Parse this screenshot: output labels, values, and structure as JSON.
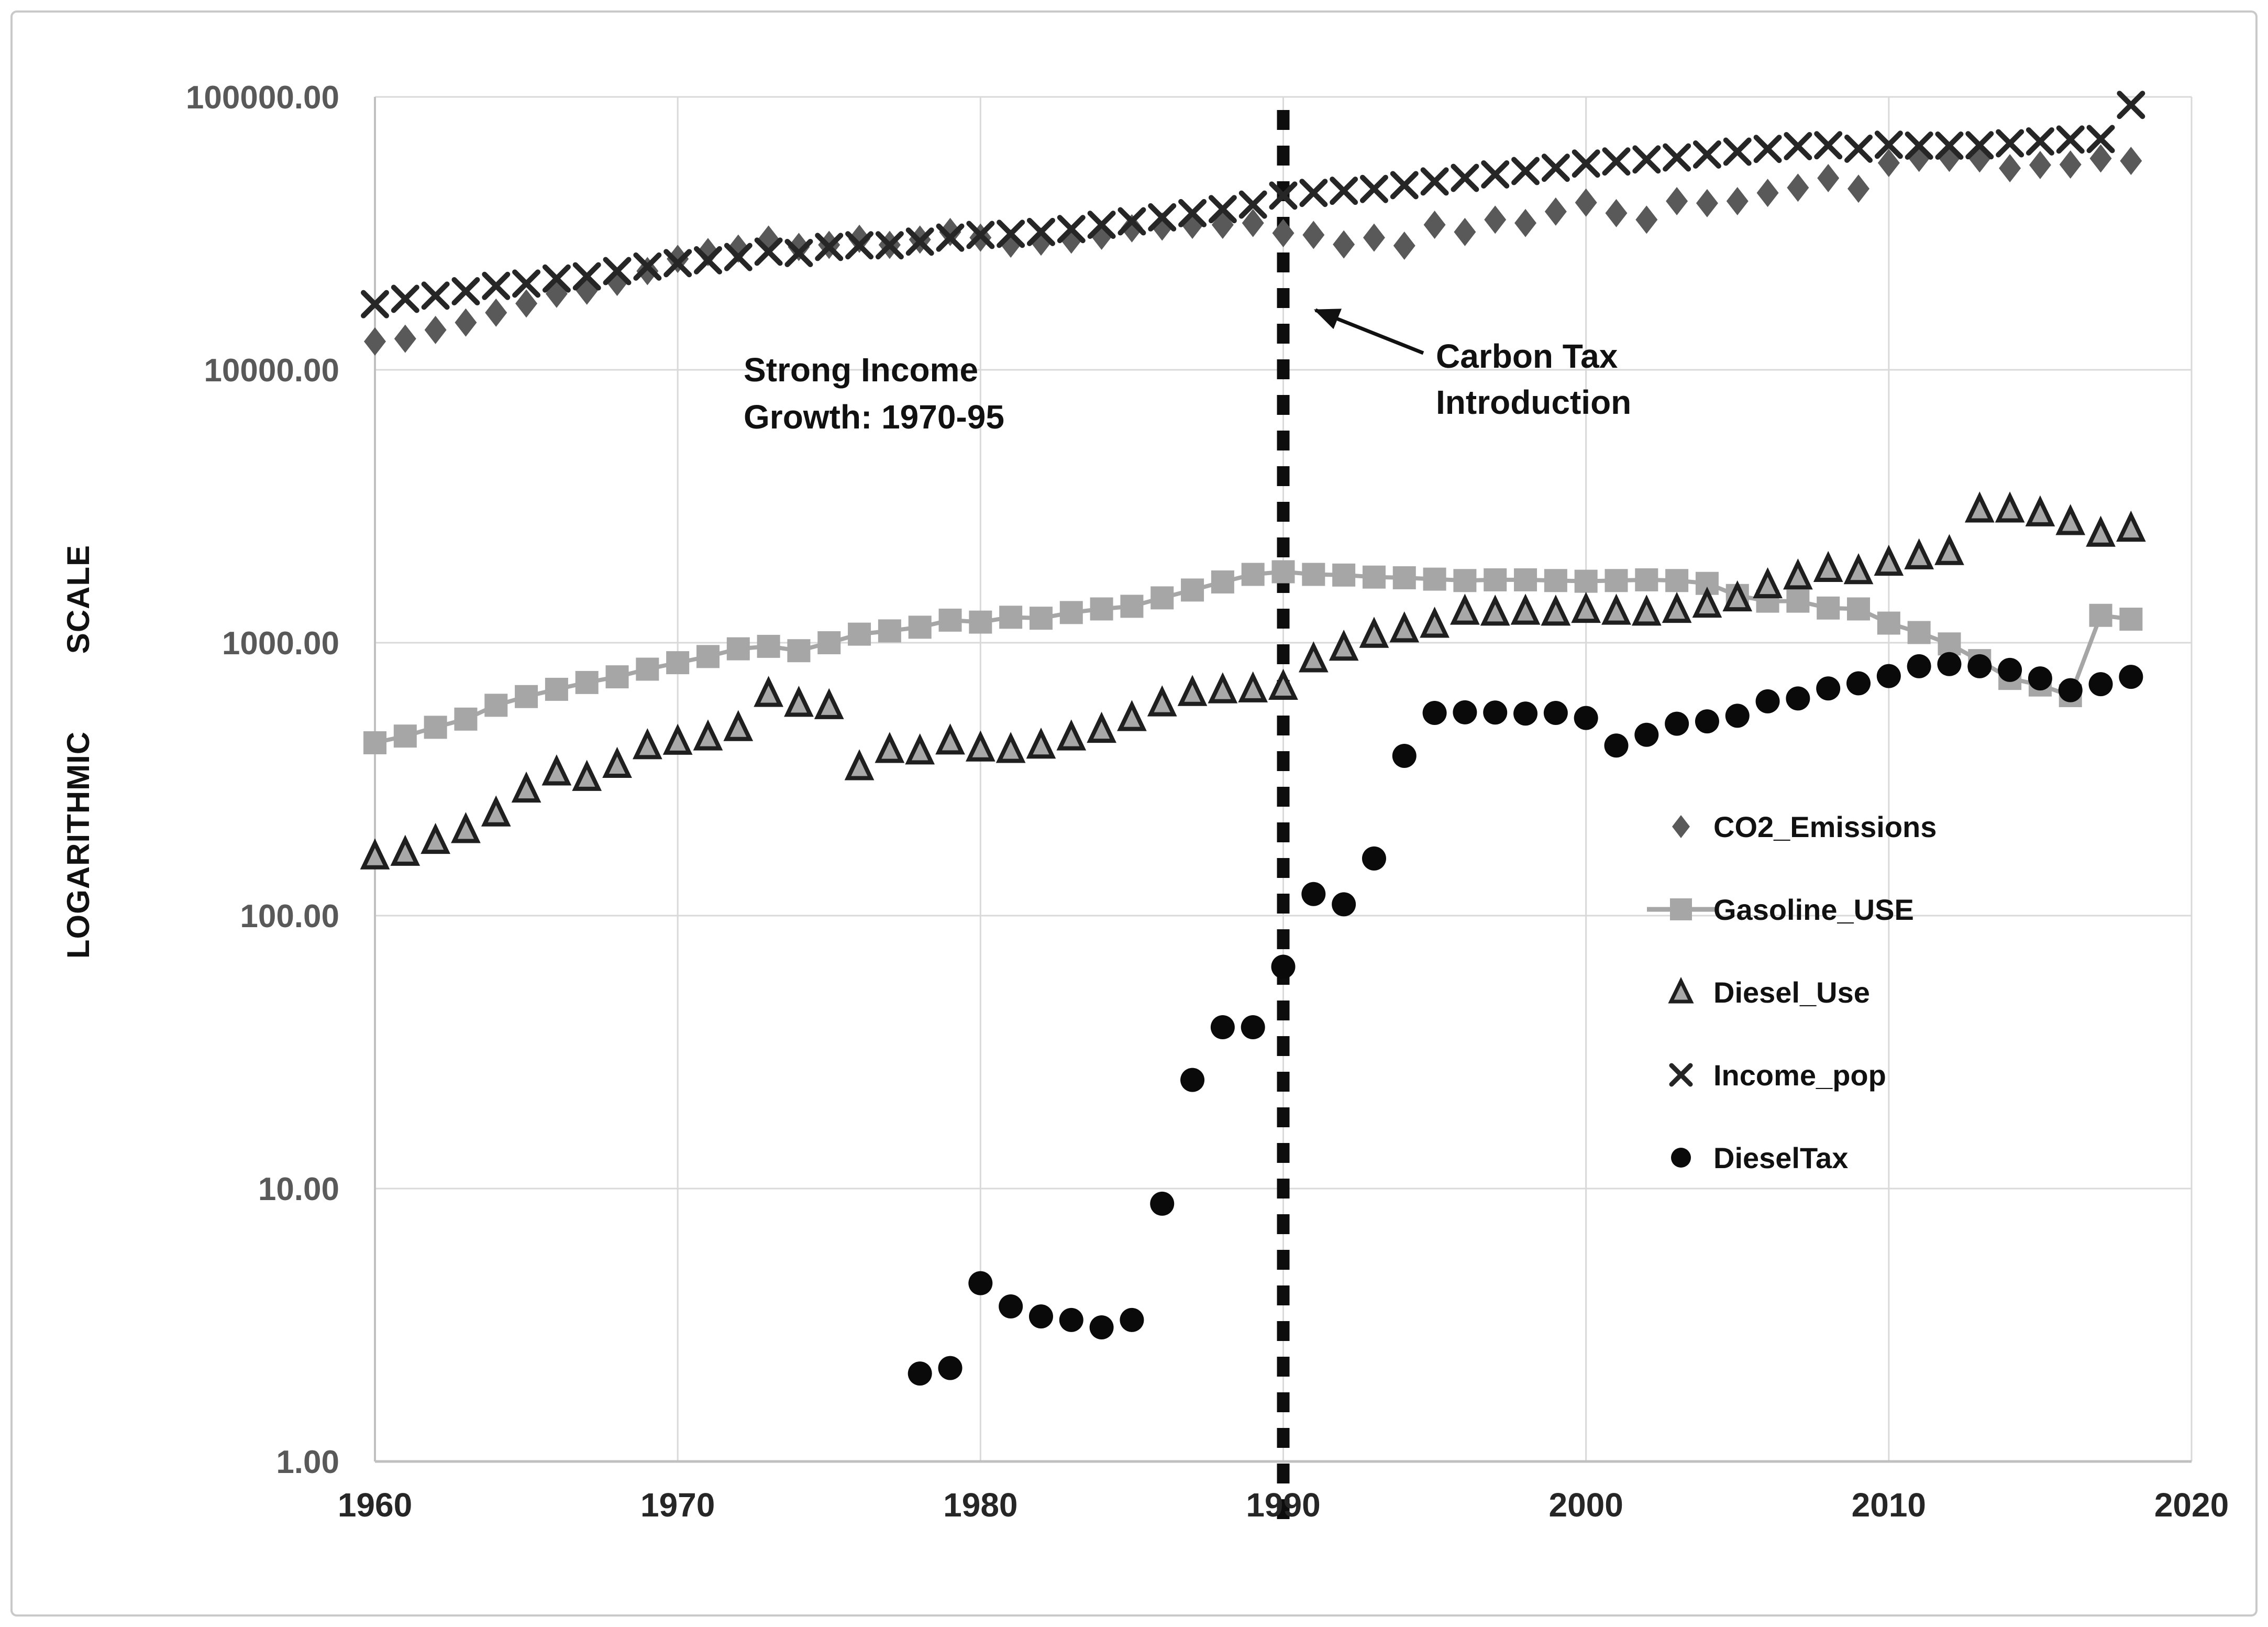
{
  "figure": {
    "background": "#ffffff",
    "border_color": "#c9c9c9"
  },
  "axis": {
    "y_title": "LOGARITHMIC SCALE",
    "y_ticks": [
      "100000.00",
      "10000.00",
      "1000.00",
      "100.00",
      "10.00",
      "1.00"
    ],
    "y_tick_values": [
      100000,
      10000,
      1000,
      100,
      10,
      1
    ],
    "x_ticks": [
      1960,
      1970,
      1980,
      1990,
      2000,
      2010,
      2020
    ],
    "grid_color": "#d9d9d9",
    "axis_line_color": "#c0c0c0"
  },
  "annotations": {
    "strong_income": {
      "line1": "Strong Income",
      "line2": "Growth: 1970-95"
    },
    "carbon_tax": {
      "line1": "Carbon Tax",
      "line2": "Introduction"
    },
    "carbon_tax_year": 1990,
    "dashed_line_color": "#0d0d0d"
  },
  "chart_data": {
    "type": "scatter",
    "title": "",
    "xlabel": "",
    "ylabel": "LOGARITHMIC SCALE",
    "x_range": [
      1960,
      2020
    ],
    "y_log_range": [
      1,
      100000
    ],
    "grid": true,
    "legend_position": "inside-right",
    "series": [
      {
        "name": "CO2_Emissions",
        "marker": "diamond",
        "color": "#595959",
        "points": [
          [
            1960,
            12700
          ],
          [
            1961,
            13000
          ],
          [
            1962,
            14000
          ],
          [
            1963,
            14900
          ],
          [
            1964,
            16200
          ],
          [
            1965,
            17500
          ],
          [
            1966,
            19000
          ],
          [
            1967,
            19500
          ],
          [
            1968,
            21000
          ],
          [
            1969,
            23000
          ],
          [
            1970,
            25500
          ],
          [
            1971,
            27000
          ],
          [
            1972,
            27800
          ],
          [
            1973,
            30000
          ],
          [
            1974,
            28200
          ],
          [
            1975,
            28700
          ],
          [
            1976,
            30200
          ],
          [
            1977,
            28700
          ],
          [
            1978,
            30000
          ],
          [
            1979,
            32000
          ],
          [
            1980,
            30500
          ],
          [
            1981,
            29000
          ],
          [
            1982,
            29500
          ],
          [
            1983,
            30000
          ],
          [
            1984,
            31000
          ],
          [
            1985,
            33000
          ],
          [
            1986,
            33500
          ],
          [
            1987,
            34000
          ],
          [
            1988,
            34000
          ],
          [
            1989,
            34500
          ],
          [
            1990,
            31700
          ],
          [
            1991,
            31200
          ],
          [
            1992,
            28800
          ],
          [
            1993,
            30500
          ],
          [
            1994,
            28500
          ],
          [
            1995,
            34000
          ],
          [
            1996,
            32000
          ],
          [
            1997,
            35500
          ],
          [
            1998,
            34500
          ],
          [
            1999,
            38000
          ],
          [
            2000,
            41000
          ],
          [
            2001,
            37500
          ],
          [
            2002,
            35500
          ],
          [
            2003,
            41500
          ],
          [
            2004,
            40800
          ],
          [
            2005,
            41500
          ],
          [
            2006,
            44500
          ],
          [
            2007,
            46500
          ],
          [
            2008,
            50400
          ],
          [
            2009,
            46100
          ],
          [
            2010,
            57300
          ],
          [
            2011,
            59800
          ],
          [
            2012,
            59800
          ],
          [
            2013,
            59500
          ],
          [
            2014,
            54800
          ],
          [
            2015,
            56300
          ],
          [
            2016,
            56500
          ],
          [
            2017,
            59500
          ],
          [
            2018,
            58300
          ]
        ]
      },
      {
        "name": "Gasoline_USE",
        "marker": "square",
        "color": "#a6a6a6",
        "line": true,
        "points": [
          [
            1960,
            430
          ],
          [
            1961,
            455
          ],
          [
            1962,
            490
          ],
          [
            1963,
            525
          ],
          [
            1964,
            590
          ],
          [
            1965,
            635
          ],
          [
            1966,
            675
          ],
          [
            1967,
            715
          ],
          [
            1968,
            750
          ],
          [
            1969,
            800
          ],
          [
            1970,
            845
          ],
          [
            1971,
            890
          ],
          [
            1972,
            950
          ],
          [
            1973,
            970
          ],
          [
            1974,
            935
          ],
          [
            1975,
            1000
          ],
          [
            1976,
            1075
          ],
          [
            1977,
            1105
          ],
          [
            1978,
            1140
          ],
          [
            1979,
            1210
          ],
          [
            1980,
            1190
          ],
          [
            1981,
            1240
          ],
          [
            1982,
            1230
          ],
          [
            1983,
            1290
          ],
          [
            1984,
            1330
          ],
          [
            1985,
            1360
          ],
          [
            1986,
            1460
          ],
          [
            1987,
            1560
          ],
          [
            1988,
            1670
          ],
          [
            1989,
            1780
          ],
          [
            1990,
            1820
          ],
          [
            1991,
            1780
          ],
          [
            1992,
            1770
          ],
          [
            1993,
            1740
          ],
          [
            1994,
            1730
          ],
          [
            1995,
            1710
          ],
          [
            1996,
            1690
          ],
          [
            1997,
            1700
          ],
          [
            1998,
            1700
          ],
          [
            1999,
            1690
          ],
          [
            2000,
            1680
          ],
          [
            2001,
            1690
          ],
          [
            2002,
            1700
          ],
          [
            2003,
            1690
          ],
          [
            2004,
            1650
          ],
          [
            2005,
            1490
          ],
          [
            2006,
            1420
          ],
          [
            2007,
            1420
          ],
          [
            2008,
            1340
          ],
          [
            2009,
            1330
          ],
          [
            2010,
            1180
          ],
          [
            2011,
            1090
          ],
          [
            2012,
            990
          ],
          [
            2013,
            860
          ],
          [
            2014,
            740
          ],
          [
            2015,
            700
          ],
          [
            2016,
            640
          ],
          [
            2017,
            1260
          ],
          [
            2018,
            1220
          ]
        ]
      },
      {
        "name": "Diesel_Use",
        "marker": "triangle",
        "color": "#1f1f1f",
        "fill": "#a8a8a8",
        "points": [
          [
            1960,
            165
          ],
          [
            1961,
            170
          ],
          [
            1962,
            188
          ],
          [
            1963,
            206
          ],
          [
            1964,
            237
          ],
          [
            1965,
            290
          ],
          [
            1966,
            335
          ],
          [
            1967,
            320
          ],
          [
            1968,
            357
          ],
          [
            1969,
            418
          ],
          [
            1970,
            434
          ],
          [
            1971,
            450
          ],
          [
            1972,
            487
          ],
          [
            1973,
            650
          ],
          [
            1974,
            598
          ],
          [
            1975,
            586
          ],
          [
            1976,
            350
          ],
          [
            1977,
            405
          ],
          [
            1978,
            400
          ],
          [
            1979,
            435
          ],
          [
            1980,
            410
          ],
          [
            1981,
            405
          ],
          [
            1982,
            420
          ],
          [
            1983,
            450
          ],
          [
            1984,
            480
          ],
          [
            1985,
            530
          ],
          [
            1986,
            600
          ],
          [
            1987,
            655
          ],
          [
            1988,
            670
          ],
          [
            1989,
            675
          ],
          [
            1990,
            690
          ],
          [
            1991,
            870
          ],
          [
            1992,
            960
          ],
          [
            1993,
            1070
          ],
          [
            1994,
            1120
          ],
          [
            1995,
            1165
          ],
          [
            1996,
            1300
          ],
          [
            1997,
            1290
          ],
          [
            1998,
            1300
          ],
          [
            1999,
            1290
          ],
          [
            2000,
            1320
          ],
          [
            2001,
            1300
          ],
          [
            2002,
            1290
          ],
          [
            2003,
            1320
          ],
          [
            2004,
            1380
          ],
          [
            2005,
            1455
          ],
          [
            2006,
            1625
          ],
          [
            2007,
            1750
          ],
          [
            2008,
            1865
          ],
          [
            2009,
            1830
          ],
          [
            2010,
            1965
          ],
          [
            2011,
            2075
          ],
          [
            2012,
            2150
          ],
          [
            2013,
            3080
          ],
          [
            2014,
            3080
          ],
          [
            2015,
            2980
          ],
          [
            2016,
            2770
          ],
          [
            2017,
            2510
          ],
          [
            2018,
            2620
          ]
        ]
      },
      {
        "name": "Income_pop",
        "marker": "x",
        "color": "#262626",
        "points": [
          [
            1960,
            17400
          ],
          [
            1961,
            18200
          ],
          [
            1962,
            18700
          ],
          [
            1963,
            19400
          ],
          [
            1964,
            20300
          ],
          [
            1965,
            20700
          ],
          [
            1966,
            21600
          ],
          [
            1967,
            22000
          ],
          [
            1968,
            23000
          ],
          [
            1969,
            23900
          ],
          [
            1970,
            24600
          ],
          [
            1971,
            25200
          ],
          [
            1972,
            25900
          ],
          [
            1973,
            27100
          ],
          [
            1974,
            26800
          ],
          [
            1975,
            28200
          ],
          [
            1976,
            28600
          ],
          [
            1977,
            28600
          ],
          [
            1978,
            29500
          ],
          [
            1979,
            30500
          ],
          [
            1980,
            31200
          ],
          [
            1981,
            31500
          ],
          [
            1982,
            32000
          ],
          [
            1983,
            32800
          ],
          [
            1984,
            34000
          ],
          [
            1985,
            35000
          ],
          [
            1986,
            36200
          ],
          [
            1987,
            37500
          ],
          [
            1988,
            38800
          ],
          [
            1989,
            40300
          ],
          [
            1990,
            43500
          ],
          [
            1991,
            44500
          ],
          [
            1992,
            45300
          ],
          [
            1993,
            46000
          ],
          [
            1994,
            47500
          ],
          [
            1995,
            49000
          ],
          [
            1996,
            50500
          ],
          [
            1997,
            52000
          ],
          [
            1998,
            53500
          ],
          [
            1999,
            55000
          ],
          [
            2000,
            57000
          ],
          [
            2001,
            58000
          ],
          [
            2002,
            59000
          ],
          [
            2003,
            60000
          ],
          [
            2004,
            61500
          ],
          [
            2005,
            63000
          ],
          [
            2006,
            64500
          ],
          [
            2007,
            66000
          ],
          [
            2008,
            66500
          ],
          [
            2009,
            64600
          ],
          [
            2010,
            66800
          ],
          [
            2011,
            66300
          ],
          [
            2012,
            66300
          ],
          [
            2013,
            66500
          ],
          [
            2014,
            67600
          ],
          [
            2015,
            68700
          ],
          [
            2016,
            69800
          ],
          [
            2017,
            70100
          ],
          [
            2018,
            93500
          ]
        ]
      },
      {
        "name": "DieselTax",
        "marker": "circle",
        "color": "#0a0a0a",
        "points": [
          [
            1978,
            2.1
          ],
          [
            1979,
            2.2
          ],
          [
            1980,
            4.5
          ],
          [
            1981,
            3.7
          ],
          [
            1982,
            3.4
          ],
          [
            1983,
            3.3
          ],
          [
            1984,
            3.1
          ],
          [
            1985,
            3.3
          ],
          [
            1986,
            8.8
          ],
          [
            1987,
            25
          ],
          [
            1988,
            39
          ],
          [
            1989,
            39
          ],
          [
            1990,
            65
          ],
          [
            1991,
            120
          ],
          [
            1992,
            110
          ],
          [
            1993,
            162
          ],
          [
            1994,
            385
          ],
          [
            1995,
            553
          ],
          [
            1996,
            556
          ],
          [
            1997,
            555
          ],
          [
            1998,
            550
          ],
          [
            1999,
            553
          ],
          [
            2000,
            530
          ],
          [
            2001,
            420
          ],
          [
            2002,
            460
          ],
          [
            2003,
            505
          ],
          [
            2004,
            515
          ],
          [
            2005,
            540
          ],
          [
            2006,
            610
          ],
          [
            2007,
            625
          ],
          [
            2008,
            680
          ],
          [
            2009,
            710
          ],
          [
            2010,
            755
          ],
          [
            2011,
            820
          ],
          [
            2012,
            835
          ],
          [
            2013,
            820
          ],
          [
            2014,
            795
          ],
          [
            2015,
            740
          ],
          [
            2016,
            670
          ],
          [
            2017,
            705
          ],
          [
            2018,
            750
          ]
        ]
      }
    ]
  },
  "legend": {
    "items": [
      "CO2_Emissions",
      "Gasoline_USE",
      "Diesel_Use",
      "Income_pop",
      "DieselTax"
    ]
  }
}
